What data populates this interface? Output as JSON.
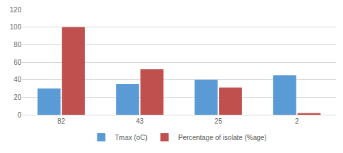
{
  "chart_data": {
    "type": "bar",
    "categories": [
      "82",
      "43",
      "25",
      "2"
    ],
    "series": [
      {
        "name": "Tmax (oC)",
        "color": "#5b9bd5",
        "values": [
          30,
          35,
          40,
          45
        ]
      },
      {
        "name": "Percentage of isolate (%age)",
        "color": "#c0504d",
        "values": [
          100,
          52,
          31,
          2
        ]
      }
    ],
    "ylim": [
      0,
      120
    ],
    "yticks": [
      0,
      20,
      40,
      60,
      80,
      100,
      120
    ],
    "grid": true,
    "legend": "bottom"
  }
}
